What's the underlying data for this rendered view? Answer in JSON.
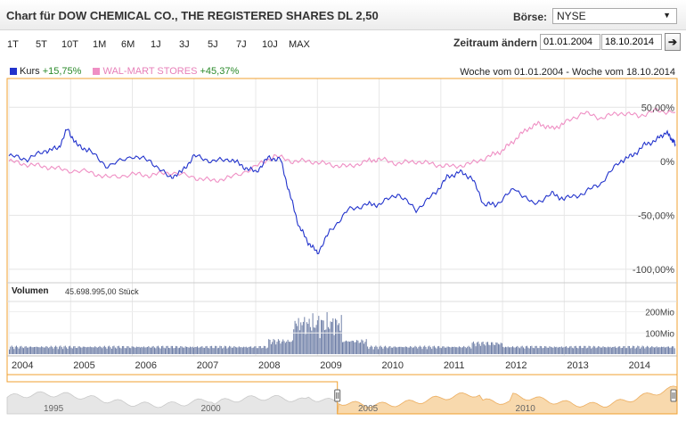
{
  "header": {
    "title": "Chart für DOW CHEMICAL CO., THE REGISTERED SHARES DL 2,50",
    "exchange_label": "Börse:",
    "exchange_value": "NYSE"
  },
  "periods": [
    "1T",
    "5T",
    "10T",
    "1M",
    "6M",
    "1J",
    "3J",
    "5J",
    "7J",
    "10J",
    "MAX"
  ],
  "range": {
    "label": "Zeitraum ändern",
    "from": "01.01.2004",
    "to": "18.10.2014",
    "go_symbol": "➔"
  },
  "legend": {
    "kurs_label": "Kurs",
    "kurs_change": "+15,75%",
    "walmart_label": "WAL-MART STORES",
    "walmart_change": "+45,37%",
    "week_range": "Woche vom 01.01.2004 - Woche vom 18.10.2014"
  },
  "volume": {
    "label": "Volumen",
    "value": "45.698.995,00 Stück"
  },
  "colors": {
    "kurs": "#2233cc",
    "walmart": "#ef8fc4",
    "frame": "#f0a030",
    "volume_bars": "#6f7fa7",
    "navigator_fill": "#f8d9ad"
  },
  "chart_data": {
    "type": "line",
    "y_unit": "%",
    "ylim": [
      -110,
      75
    ],
    "y_ticks": [
      "50,00%",
      "0%",
      "-50,00%",
      "-100,00%"
    ],
    "y_tick_values": [
      50,
      0,
      -50,
      -100
    ],
    "x_ticks": [
      "2004",
      "2005",
      "2006",
      "2007",
      "2008",
      "2009",
      "2010",
      "2011",
      "2012",
      "2013",
      "2014"
    ],
    "x_range": [
      2004.0,
      2014.8
    ],
    "series": [
      {
        "name": "Kurs",
        "x": [
          2004.0,
          2004.3,
          2004.6,
          2004.8,
          2004.95,
          2005.1,
          2005.3,
          2005.6,
          2006.0,
          2006.3,
          2006.6,
          2006.8,
          2007.0,
          2007.3,
          2007.6,
          2007.8,
          2008.0,
          2008.2,
          2008.4,
          2008.55,
          2008.7,
          2008.85,
          2009.0,
          2009.2,
          2009.5,
          2009.8,
          2010.0,
          2010.3,
          2010.6,
          2010.9,
          2011.1,
          2011.3,
          2011.5,
          2011.7,
          2011.9,
          2012.2,
          2012.5,
          2012.8,
          2013.0,
          2013.3,
          2013.6,
          2013.9,
          2014.1,
          2014.3,
          2014.5,
          2014.65,
          2014.75,
          2014.8
        ],
        "values": [
          5,
          2,
          10,
          12,
          30,
          15,
          10,
          -5,
          5,
          0,
          -15,
          -10,
          5,
          0,
          2,
          -5,
          -10,
          3,
          2,
          -30,
          -60,
          -75,
          -85,
          -65,
          -45,
          -40,
          -40,
          -30,
          -45,
          -30,
          -15,
          -10,
          -15,
          -40,
          -40,
          -25,
          -40,
          -30,
          -35,
          -30,
          -20,
          0,
          5,
          15,
          20,
          27,
          20,
          15.75
        ]
      },
      {
        "name": "WAL-MART STORES",
        "x": [
          2004.0,
          2004.3,
          2004.6,
          2004.9,
          2005.3,
          2005.6,
          2006.0,
          2006.3,
          2006.6,
          2007.0,
          2007.3,
          2007.6,
          2008.0,
          2008.3,
          2008.6,
          2008.9,
          2009.2,
          2009.5,
          2009.8,
          2010.0,
          2010.3,
          2010.6,
          2010.9,
          2011.2,
          2011.5,
          2011.8,
          2012.0,
          2012.2,
          2012.4,
          2012.6,
          2012.8,
          2013.0,
          2013.3,
          2013.6,
          2013.9,
          2014.2,
          2014.5,
          2014.8
        ],
        "values": [
          0,
          -3,
          -5,
          -8,
          -10,
          -15,
          -12,
          -13,
          -10,
          -15,
          -18,
          -15,
          -5,
          5,
          0,
          0,
          -3,
          -5,
          0,
          2,
          -2,
          0,
          -3,
          -5,
          -2,
          5,
          10,
          20,
          30,
          35,
          30,
          35,
          45,
          40,
          45,
          42,
          47,
          45.37
        ]
      }
    ],
    "volume_axis_ticks": [
      "200Mio",
      "100Mio"
    ],
    "volume_axis_values": [
      200,
      100
    ],
    "navigator_ticks": [
      "1995",
      "2000",
      "2005",
      "2010"
    ]
  }
}
